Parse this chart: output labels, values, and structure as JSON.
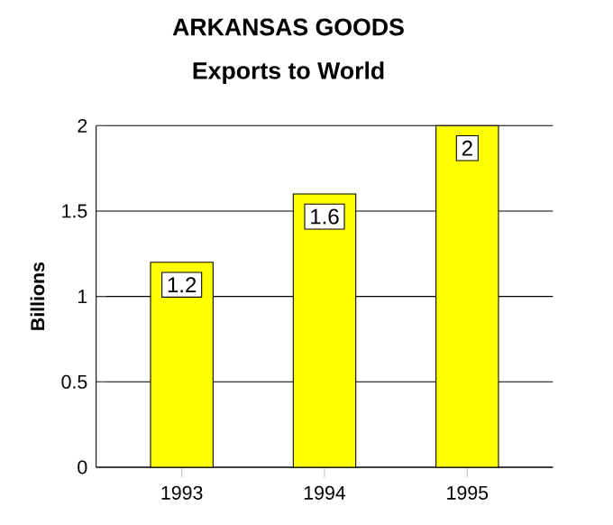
{
  "chart_data": {
    "type": "bar",
    "title": "ARKANSAS GOODS",
    "subtitle": "Exports to World",
    "ylabel": "Billions",
    "categories": [
      "1993",
      "1994",
      "1995"
    ],
    "values": [
      1.2,
      1.6,
      2
    ],
    "color": "#ffff00",
    "ylim": [
      0,
      2
    ],
    "yticks": [
      0,
      0.5,
      1,
      1.5,
      2
    ],
    "grid": "y",
    "data_labels": true
  }
}
